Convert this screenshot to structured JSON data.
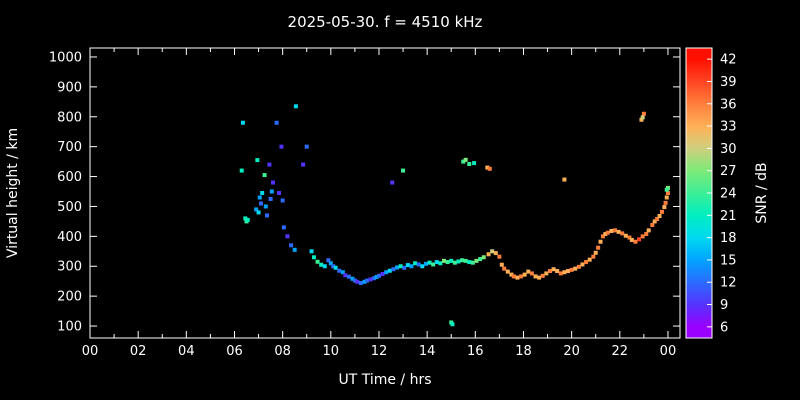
{
  "chart_data": {
    "type": "scatter",
    "title": "2025-05-30. f = 4510 kHz",
    "xlabel": "UT Time / hrs",
    "ylabel": "Virtual height / km",
    "colorbar_label": "SNR / dB",
    "xlim": [
      0,
      24.5
    ],
    "ylim": [
      60,
      1030
    ],
    "snr_lim": [
      4.5,
      43.5
    ],
    "x_ticks": [
      {
        "v": 0,
        "label": "00"
      },
      {
        "v": 2,
        "label": "02"
      },
      {
        "v": 4,
        "label": "04"
      },
      {
        "v": 6,
        "label": "06"
      },
      {
        "v": 8,
        "label": "08"
      },
      {
        "v": 10,
        "label": "10"
      },
      {
        "v": 12,
        "label": "12"
      },
      {
        "v": 14,
        "label": "14"
      },
      {
        "v": 16,
        "label": "16"
      },
      {
        "v": 18,
        "label": "18"
      },
      {
        "v": 20,
        "label": "20"
      },
      {
        "v": 22,
        "label": "22"
      },
      {
        "v": 24,
        "label": "00"
      }
    ],
    "y_ticks": [
      100,
      200,
      300,
      400,
      500,
      600,
      700,
      800,
      900,
      1000
    ],
    "snr_ticks": [
      6,
      9,
      12,
      15,
      18,
      21,
      24,
      27,
      30,
      33,
      36,
      39,
      42
    ],
    "color_stops": [
      [
        6,
        "#9900ff"
      ],
      [
        9,
        "#5533ff"
      ],
      [
        12,
        "#2b6bff"
      ],
      [
        15,
        "#00a4ff"
      ],
      [
        18,
        "#00d9f0"
      ],
      [
        21,
        "#00eec0"
      ],
      [
        24,
        "#3cee96"
      ],
      [
        27,
        "#7dea78"
      ],
      [
        30,
        "#cfcf7d"
      ],
      [
        33,
        "#ffb056"
      ],
      [
        36,
        "#ff7e3c"
      ],
      [
        39,
        "#ff4523"
      ],
      [
        42,
        "#ff0f00"
      ]
    ],
    "points": [
      [
        6.3,
        620,
        21
      ],
      [
        6.35,
        780,
        18
      ],
      [
        6.45,
        460,
        21
      ],
      [
        6.5,
        450,
        24
      ],
      [
        6.55,
        455,
        21
      ],
      [
        6.9,
        490,
        15
      ],
      [
        6.95,
        655,
        21
      ],
      [
        7.0,
        480,
        18
      ],
      [
        7.05,
        530,
        15
      ],
      [
        7.1,
        510,
        12
      ],
      [
        7.15,
        545,
        18
      ],
      [
        7.25,
        605,
        24
      ],
      [
        7.3,
        500,
        15
      ],
      [
        7.35,
        470,
        12
      ],
      [
        7.45,
        640,
        9
      ],
      [
        7.5,
        525,
        12
      ],
      [
        7.55,
        550,
        15
      ],
      [
        7.6,
        580,
        9
      ],
      [
        7.75,
        780,
        12
      ],
      [
        7.85,
        545,
        9
      ],
      [
        7.95,
        700,
        9
      ],
      [
        8.0,
        520,
        12
      ],
      [
        8.05,
        430,
        12
      ],
      [
        8.2,
        400,
        9
      ],
      [
        8.35,
        370,
        12
      ],
      [
        8.5,
        355,
        15
      ],
      [
        8.55,
        835,
        18
      ],
      [
        8.85,
        640,
        9
      ],
      [
        9.0,
        700,
        12
      ],
      [
        9.2,
        350,
        18
      ],
      [
        9.3,
        330,
        21
      ],
      [
        9.45,
        315,
        24
      ],
      [
        9.6,
        305,
        21
      ],
      [
        9.75,
        300,
        18
      ],
      [
        9.9,
        320,
        12
      ],
      [
        10.0,
        310,
        15
      ],
      [
        10.1,
        300,
        12
      ],
      [
        10.2,
        295,
        18
      ],
      [
        10.35,
        285,
        12
      ],
      [
        10.5,
        280,
        15
      ],
      [
        10.6,
        270,
        9
      ],
      [
        10.75,
        265,
        12
      ],
      [
        10.9,
        258,
        15
      ],
      [
        11.0,
        252,
        12
      ],
      [
        11.1,
        248,
        9
      ],
      [
        11.25,
        244,
        12
      ],
      [
        11.4,
        248,
        15
      ],
      [
        11.5,
        252,
        12
      ],
      [
        11.65,
        256,
        9
      ],
      [
        11.8,
        260,
        12
      ],
      [
        11.9,
        264,
        15
      ],
      [
        12.0,
        268,
        12
      ],
      [
        12.15,
        274,
        9
      ],
      [
        12.3,
        280,
        15
      ],
      [
        12.55,
        580,
        9
      ],
      [
        13.0,
        620,
        24
      ],
      [
        12.45,
        285,
        18
      ],
      [
        12.6,
        290,
        12
      ],
      [
        12.75,
        296,
        15
      ],
      [
        12.9,
        300,
        21
      ],
      [
        13.05,
        295,
        12
      ],
      [
        13.2,
        304,
        18
      ],
      [
        13.35,
        300,
        15
      ],
      [
        13.5,
        310,
        21
      ],
      [
        13.65,
        306,
        12
      ],
      [
        13.8,
        300,
        18
      ],
      [
        13.95,
        308,
        15
      ],
      [
        14.1,
        312,
        21
      ],
      [
        14.25,
        306,
        24
      ],
      [
        14.4,
        314,
        18
      ],
      [
        14.55,
        310,
        21
      ],
      [
        14.7,
        318,
        27
      ],
      [
        14.85,
        314,
        24
      ],
      [
        15.0,
        318,
        21
      ],
      [
        15.0,
        112,
        24
      ],
      [
        15.05,
        106,
        21
      ],
      [
        15.15,
        312,
        24
      ],
      [
        15.3,
        316,
        21
      ],
      [
        15.45,
        320,
        24
      ],
      [
        15.5,
        650,
        24
      ],
      [
        15.6,
        656,
        27
      ],
      [
        15.75,
        642,
        24
      ],
      [
        15.95,
        645,
        21
      ],
      [
        15.6,
        318,
        24
      ],
      [
        15.75,
        314,
        21
      ],
      [
        15.9,
        312,
        24
      ],
      [
        16.05,
        318,
        27
      ],
      [
        16.2,
        324,
        24
      ],
      [
        16.35,
        330,
        27
      ],
      [
        16.5,
        630,
        33
      ],
      [
        16.6,
        626,
        36
      ],
      [
        16.55,
        340,
        33
      ],
      [
        16.7,
        350,
        30
      ],
      [
        16.85,
        344,
        33
      ],
      [
        17.0,
        332,
        36
      ],
      [
        17.1,
        305,
        33
      ],
      [
        17.2,
        292,
        36
      ],
      [
        17.35,
        282,
        33
      ],
      [
        17.5,
        272,
        33
      ],
      [
        17.6,
        266,
        36
      ],
      [
        17.75,
        262,
        33
      ],
      [
        17.9,
        266,
        36
      ],
      [
        18.05,
        272,
        33
      ],
      [
        18.2,
        282,
        33
      ],
      [
        18.35,
        276,
        36
      ],
      [
        18.5,
        266,
        33
      ],
      [
        18.65,
        262,
        33
      ],
      [
        18.8,
        268,
        36
      ],
      [
        18.95,
        276,
        33
      ],
      [
        19.1,
        284,
        36
      ],
      [
        19.25,
        290,
        33
      ],
      [
        19.4,
        284,
        33
      ],
      [
        19.55,
        276,
        36
      ],
      [
        19.7,
        280,
        33
      ],
      [
        19.7,
        590,
        33
      ],
      [
        19.85,
        284,
        33
      ],
      [
        20.0,
        288,
        36
      ],
      [
        20.15,
        292,
        33
      ],
      [
        20.3,
        298,
        36
      ],
      [
        20.45,
        306,
        33
      ],
      [
        20.6,
        314,
        36
      ],
      [
        20.75,
        322,
        33
      ],
      [
        20.9,
        332,
        36
      ],
      [
        21.0,
        345,
        33
      ],
      [
        21.1,
        362,
        36
      ],
      [
        21.2,
        382,
        33
      ],
      [
        21.3,
        400,
        36
      ],
      [
        21.4,
        408,
        33
      ],
      [
        21.5,
        412,
        36
      ],
      [
        21.65,
        418,
        33
      ],
      [
        21.8,
        420,
        36
      ],
      [
        21.95,
        415,
        33
      ],
      [
        22.1,
        410,
        36
      ],
      [
        22.25,
        402,
        33
      ],
      [
        22.4,
        396,
        36
      ],
      [
        22.5,
        388,
        33
      ],
      [
        22.65,
        382,
        36
      ],
      [
        22.8,
        390,
        39
      ],
      [
        22.95,
        400,
        36
      ],
      [
        22.9,
        790,
        33
      ],
      [
        23.0,
        810,
        36
      ],
      [
        22.95,
        798,
        30
      ],
      [
        23.1,
        408,
        36
      ],
      [
        23.2,
        420,
        33
      ],
      [
        23.35,
        438,
        36
      ],
      [
        23.45,
        450,
        33
      ],
      [
        23.55,
        458,
        36
      ],
      [
        23.65,
        468,
        33
      ],
      [
        23.75,
        482,
        36
      ],
      [
        23.85,
        498,
        33
      ],
      [
        23.9,
        512,
        36
      ],
      [
        23.95,
        530,
        33
      ],
      [
        24.0,
        545,
        36
      ],
      [
        24.0,
        562,
        27
      ],
      [
        23.95,
        556,
        24
      ]
    ]
  }
}
